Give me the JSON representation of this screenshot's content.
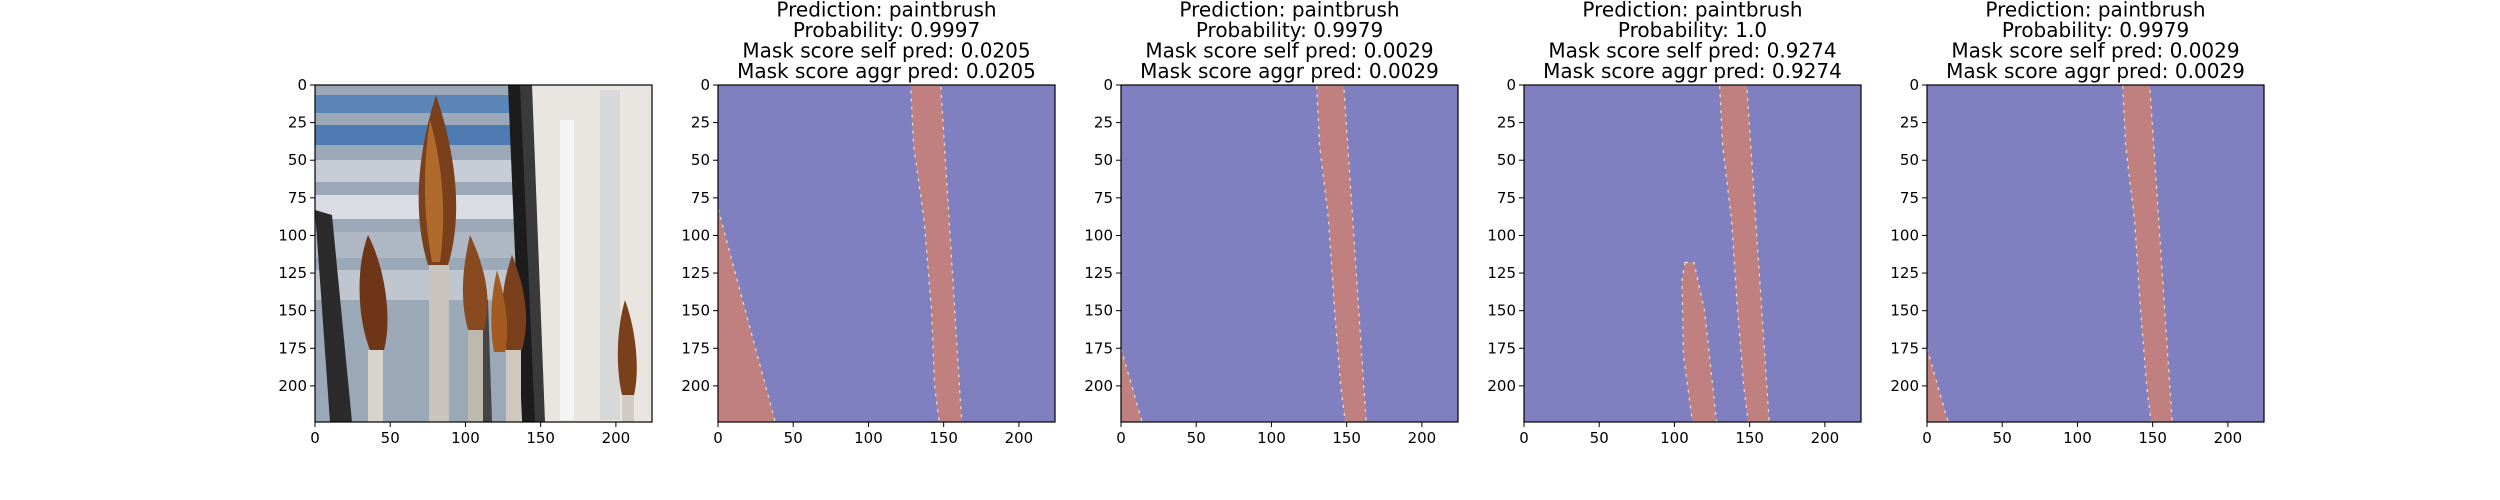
{
  "figure": {
    "background": "#ffffff"
  },
  "colors": {
    "background_class": "#8080c0",
    "object_class": "#c08080",
    "boundary": "#e8e0c0",
    "axis": "#000000"
  },
  "chart_data": [
    {
      "type": "image",
      "panel": "input-image",
      "title_lines": [],
      "image_description": "photo of paintbrushes in a jar",
      "xlim": [
        0,
        224
      ],
      "ylim": [
        224,
        0
      ],
      "xticks": [
        "0",
        "50",
        "100",
        "150",
        "200"
      ],
      "yticks": [
        "0",
        "25",
        "50",
        "75",
        "100",
        "125",
        "150",
        "175",
        "200"
      ]
    },
    {
      "type": "segmentation-mask",
      "panel": "mask-1",
      "title_lines": [
        "Prediction: paintbrush",
        "Probability: 0.9997",
        "Mask score self pred: 0.0205",
        "Mask score aggr pred: 0.0205"
      ],
      "xlim": [
        0,
        224
      ],
      "ylim": [
        224,
        0
      ],
      "xticks": [
        "0",
        "50",
        "100",
        "150",
        "200"
      ],
      "yticks": [
        "0",
        "25",
        "50",
        "75",
        "100",
        "125",
        "150",
        "175",
        "200"
      ],
      "regions": [
        [
          [
            0,
            82
          ],
          [
            0,
            224
          ],
          [
            38,
            224
          ]
        ],
        [
          [
            128,
            0
          ],
          [
            148,
            0
          ],
          [
            162,
            224
          ],
          [
            147,
            224
          ],
          [
            144,
            200
          ],
          [
            142,
            150
          ],
          [
            137,
            90
          ],
          [
            130,
            40
          ]
        ]
      ]
    },
    {
      "type": "segmentation-mask",
      "panel": "mask-2",
      "title_lines": [
        "Prediction: paintbrush",
        "Probability: 0.9979",
        "Mask score self pred: 0.0029",
        "Mask score aggr pred: 0.0029"
      ],
      "xlim": [
        0,
        224
      ],
      "ylim": [
        224,
        0
      ],
      "xticks": [
        "0",
        "50",
        "100",
        "150",
        "200"
      ],
      "yticks": [
        "0",
        "25",
        "50",
        "75",
        "100",
        "125",
        "150",
        "175",
        "200"
      ],
      "regions": [
        [
          [
            0,
            175
          ],
          [
            0,
            224
          ],
          [
            14,
            224
          ]
        ],
        [
          [
            130,
            0
          ],
          [
            148,
            0
          ],
          [
            163,
            224
          ],
          [
            149,
            224
          ],
          [
            146,
            200
          ],
          [
            142,
            150
          ],
          [
            138,
            90
          ],
          [
            132,
            40
          ]
        ]
      ]
    },
    {
      "type": "segmentation-mask",
      "panel": "mask-3",
      "title_lines": [
        "Prediction: paintbrush",
        "Probability: 1.0",
        "Mask score self pred: 0.9274",
        "Mask score aggr pred: 0.9274"
      ],
      "xlim": [
        0,
        224
      ],
      "ylim": [
        224,
        0
      ],
      "xticks": [
        "0",
        "50",
        "100",
        "150",
        "200"
      ],
      "yticks": [
        "0",
        "25",
        "50",
        "75",
        "100",
        "125",
        "150",
        "175",
        "200"
      ],
      "regions": [
        [
          [
            107,
            118
          ],
          [
            113,
            118
          ],
          [
            120,
            150
          ],
          [
            128,
            224
          ],
          [
            112,
            224
          ],
          [
            106,
            180
          ],
          [
            105,
            130
          ]
        ],
        [
          [
            130,
            0
          ],
          [
            148,
            0
          ],
          [
            163,
            224
          ],
          [
            149,
            224
          ],
          [
            146,
            200
          ],
          [
            142,
            150
          ],
          [
            138,
            90
          ],
          [
            132,
            40
          ]
        ]
      ]
    },
    {
      "type": "segmentation-mask",
      "panel": "mask-4",
      "title_lines": [
        "Prediction: paintbrush",
        "Probability: 0.9979",
        "Mask score self pred: 0.0029",
        "Mask score aggr pred: 0.0029"
      ],
      "xlim": [
        0,
        224
      ],
      "ylim": [
        224,
        0
      ],
      "xticks": [
        "0",
        "50",
        "100",
        "150",
        "200"
      ],
      "yticks": [
        "0",
        "25",
        "50",
        "75",
        "100",
        "125",
        "150",
        "175",
        "200"
      ],
      "regions": [
        [
          [
            0,
            175
          ],
          [
            0,
            224
          ],
          [
            14,
            224
          ]
        ],
        [
          [
            130,
            0
          ],
          [
            148,
            0
          ],
          [
            163,
            224
          ],
          [
            149,
            224
          ],
          [
            146,
            200
          ],
          [
            142,
            150
          ],
          [
            138,
            90
          ],
          [
            132,
            40
          ]
        ]
      ]
    }
  ]
}
